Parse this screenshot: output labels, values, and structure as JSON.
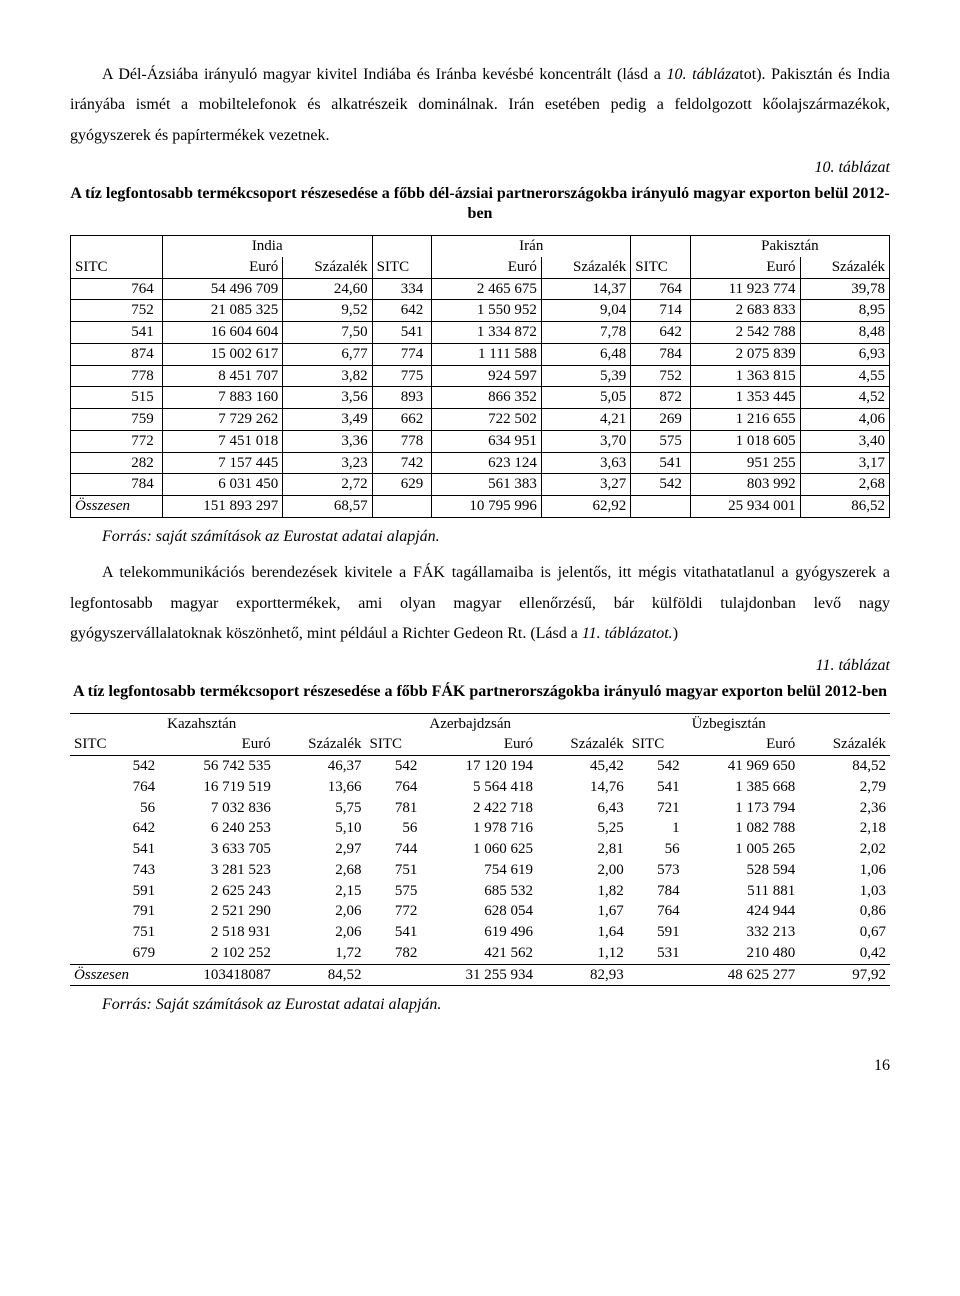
{
  "paragraph1": {
    "pre": "A Dél-Ázsiába irányuló magyar kivitel Indiába és Iránba kevésbé koncentrált (lásd a ",
    "ital1": "10. tábláza",
    "mid1": "tot). Pakisztán és India irányába ismét a mobiltelefonok és alkatrészeik dominálnak. Irán esetében pedig a feldolgozott kőolajszármazékok, gyógyszerek és papírtermékek vezetnek."
  },
  "table10": {
    "caption_num": "10. táblázat",
    "caption_title": "A tíz legfontosabb termékcsoport részesedése a főbb dél-ázsiai partnerországokba irányuló magyar exporton belül 2012-ben",
    "countries": [
      "India",
      "Irán",
      "Pakisztán"
    ],
    "headers": [
      "SITC",
      "Euró",
      "Százalék",
      "SITC",
      "Euró",
      "Százalék",
      "SITC",
      "Euró",
      "Százalék"
    ],
    "rows": [
      [
        "764",
        "54 496 709",
        "24,60",
        "334",
        "2 465 675",
        "14,37",
        "764",
        "11 923 774",
        "39,78"
      ],
      [
        "752",
        "21 085 325",
        "9,52",
        "642",
        "1 550 952",
        "9,04",
        "714",
        "2 683 833",
        "8,95"
      ],
      [
        "541",
        "16 604 604",
        "7,50",
        "541",
        "1 334 872",
        "7,78",
        "642",
        "2 542 788",
        "8,48"
      ],
      [
        "874",
        "15 002 617",
        "6,77",
        "774",
        "1 111 588",
        "6,48",
        "784",
        "2 075 839",
        "6,93"
      ],
      [
        "778",
        "8 451 707",
        "3,82",
        "775",
        "924 597",
        "5,39",
        "752",
        "1 363 815",
        "4,55"
      ],
      [
        "515",
        "7 883 160",
        "3,56",
        "893",
        "866 352",
        "5,05",
        "872",
        "1 353 445",
        "4,52"
      ],
      [
        "759",
        "7 729 262",
        "3,49",
        "662",
        "722 502",
        "4,21",
        "269",
        "1 216 655",
        "4,06"
      ],
      [
        "772",
        "7 451 018",
        "3,36",
        "778",
        "634 951",
        "3,70",
        "575",
        "1 018 605",
        "3,40"
      ],
      [
        "282",
        "7 157 445",
        "3,23",
        "742",
        "623 124",
        "3,63",
        "541",
        "951 255",
        "3,17"
      ],
      [
        "784",
        "6 031 450",
        "2,72",
        "629",
        "561 383",
        "3,27",
        "542",
        "803 992",
        "2,68"
      ]
    ],
    "total_label": "Összesen",
    "totals": [
      "151 893 297",
      "68,57",
      "",
      "10 795 996",
      "62,92",
      "",
      "25 934 001",
      "86,52"
    ],
    "source": "Forrás: saját számítások az Eurostat adatai alapján."
  },
  "paragraph2": {
    "pre": "A telekommunikációs berendezések kivitele a FÁK tagállamaiba is jelentős, itt mégis vitathatatlanul a gyógyszerek a legfontosabb magyar exporttermékek, ami olyan magyar ellenőrzésű, bár külföldi tulajdonban levő nagy gyógyszervállalatoknak köszönhető, mint például a Richter Gedeon Rt.  (Lásd a ",
    "ital": "11. táblázatot.",
    "post": ")"
  },
  "table11": {
    "caption_num": "11. táblázat",
    "caption_title": "A tíz legfontosabb termékcsoport részesedése a főbb FÁK partnerországokba irányuló magyar exporton belül 2012-ben",
    "countries": [
      "Kazahsztán",
      "Azerbajdzsán",
      "Üzbegisztán"
    ],
    "headers": [
      "SITC",
      "Euró",
      "Százalék",
      "SITC",
      "Euró",
      "Százalék",
      "SITC",
      "Euró",
      "Százalék"
    ],
    "rows": [
      [
        "542",
        "56 742 535",
        "46,37",
        "542",
        "17 120 194",
        "45,42",
        "542",
        "41 969 650",
        "84,52"
      ],
      [
        "764",
        "16 719 519",
        "13,66",
        "764",
        "5 564 418",
        "14,76",
        "541",
        "1 385 668",
        "2,79"
      ],
      [
        "56",
        "7 032 836",
        "5,75",
        "781",
        "2 422 718",
        "6,43",
        "721",
        "1 173 794",
        "2,36"
      ],
      [
        "642",
        "6 240 253",
        "5,10",
        "56",
        "1 978 716",
        "5,25",
        "1",
        "1 082 788",
        "2,18"
      ],
      [
        "541",
        "3 633 705",
        "2,97",
        "744",
        "1 060 625",
        "2,81",
        "56",
        "1 005 265",
        "2,02"
      ],
      [
        "743",
        "3 281 523",
        "2,68",
        "751",
        "754 619",
        "2,00",
        "573",
        "528 594",
        "1,06"
      ],
      [
        "591",
        "2 625 243",
        "2,15",
        "575",
        "685 532",
        "1,82",
        "784",
        "511 881",
        "1,03"
      ],
      [
        "791",
        "2 521 290",
        "2,06",
        "772",
        "628 054",
        "1,67",
        "764",
        "424 944",
        "0,86"
      ],
      [
        "751",
        "2 518 931",
        "2,06",
        "541",
        "619 496",
        "1,64",
        "591",
        "332 213",
        "0,67"
      ],
      [
        "679",
        "2 102 252",
        "1,72",
        "782",
        "421 562",
        "1,12",
        "531",
        "210 480",
        "0,42"
      ]
    ],
    "total_label": "Összesen",
    "totals": [
      "103418087",
      "84,52",
      "",
      "31 255 934",
      "82,93",
      "",
      "48 625 277",
      "97,92"
    ],
    "source": "Forrás: Saját számítások az Eurostat adatai alapján."
  },
  "page_number": "16"
}
